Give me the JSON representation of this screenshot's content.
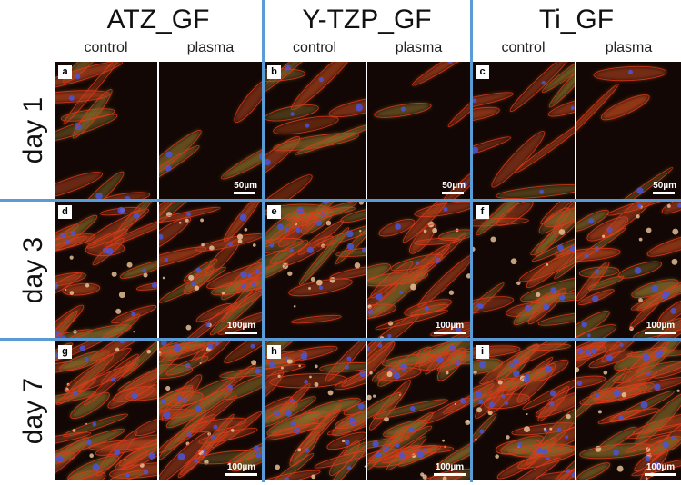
{
  "groups": [
    {
      "title": "ATZ_GF",
      "sub": [
        "control",
        "plasma"
      ]
    },
    {
      "title": "Y-TZP_GF",
      "sub": [
        "control",
        "plasma"
      ]
    },
    {
      "title": "Ti_GF",
      "sub": [
        "control",
        "plasma"
      ]
    }
  ],
  "rows": [
    "day 1",
    "day 3",
    "day 7"
  ],
  "panel_letters": [
    "a",
    "b",
    "c",
    "d",
    "e",
    "f",
    "g",
    "h",
    "i"
  ],
  "scale_bars": [
    "50µm",
    "50µm",
    "50µm",
    "100µm",
    "100µm",
    "100µm",
    "100µm",
    "100µm",
    "100µm"
  ],
  "colors": {
    "separator": "#5b9bd5",
    "actin": "#d83a1a",
    "nucleus": "#3b48c8",
    "vinculin": "#8fa02a"
  }
}
